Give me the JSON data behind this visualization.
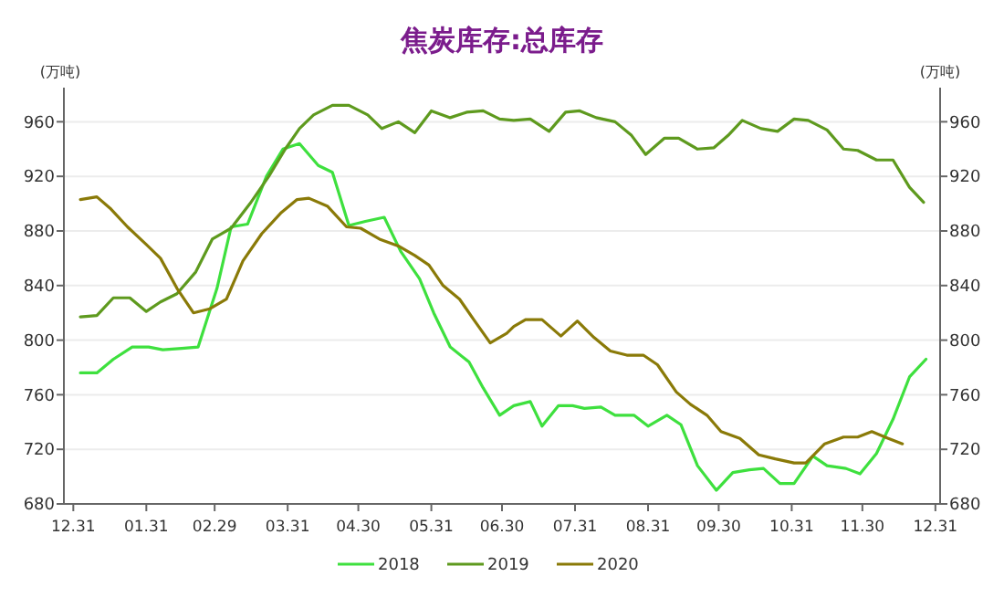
{
  "chart_data": {
    "type": "line",
    "title": "焦炭库存:总库存",
    "ylabel": "(万吨)",
    "y2label": "(万吨)",
    "xlim": [
      "2019-12-27",
      "2021-01-02"
    ],
    "xticks": [
      {
        "value": "2019-12-31",
        "label": "12.31"
      },
      {
        "value": "2020-01-31",
        "label": "01.31"
      },
      {
        "value": "2020-02-29",
        "label": "02.29"
      },
      {
        "value": "2020-03-31",
        "label": "03.31"
      },
      {
        "value": "2020-04-30",
        "label": "04.30"
      },
      {
        "value": "2020-05-31",
        "label": "05.31"
      },
      {
        "value": "2020-06-30",
        "label": "06.30"
      },
      {
        "value": "2020-07-31",
        "label": "07.31"
      },
      {
        "value": "2020-08-31",
        "label": "08.31"
      },
      {
        "value": "2020-09-30",
        "label": "09.30"
      },
      {
        "value": "2020-10-31",
        "label": "10.31"
      },
      {
        "value": "2020-11-30",
        "label": "11.30"
      },
      {
        "value": "2020-12-31",
        "label": "12.31"
      }
    ],
    "ylim": [
      680,
      985
    ],
    "yticks": [
      680,
      720,
      760,
      800,
      840,
      880,
      920,
      960
    ],
    "y2lim": [
      680,
      985
    ],
    "y2ticks": [
      680,
      720,
      760,
      800,
      840,
      880,
      920,
      960
    ],
    "grid": "y",
    "legend": "bottom",
    "line_style": "solid",
    "marker": "none",
    "series": [
      {
        "name": "2018",
        "color": "#3ee03e",
        "x": [
          "2020-01-03",
          "2020-01-10",
          "2020-01-17",
          "2020-01-25",
          "2020-02-01",
          "2020-02-07",
          "2020-02-15",
          "2020-02-22",
          "2020-03-01",
          "2020-03-07",
          "2020-03-14",
          "2020-03-22",
          "2020-03-29",
          "2020-04-05",
          "2020-04-13",
          "2020-04-19",
          "2020-04-26",
          "2020-05-03",
          "2020-05-11",
          "2020-05-18",
          "2020-05-26",
          "2020-06-01",
          "2020-06-08",
          "2020-06-16",
          "2020-06-22",
          "2020-06-29",
          "2020-07-05",
          "2020-07-12",
          "2020-07-17",
          "2020-07-24",
          "2020-07-30",
          "2020-08-04",
          "2020-08-11",
          "2020-08-17",
          "2020-08-25",
          "2020-08-31",
          "2020-09-08",
          "2020-09-14",
          "2020-09-21",
          "2020-09-29",
          "2020-10-06",
          "2020-10-13",
          "2020-10-19",
          "2020-10-26",
          "2020-11-01",
          "2020-11-09",
          "2020-11-15",
          "2020-11-23",
          "2020-11-29",
          "2020-12-06",
          "2020-12-13",
          "2020-12-20",
          "2020-12-27"
        ],
        "values": [
          776,
          776,
          786,
          795,
          795,
          793,
          794,
          795,
          838,
          883,
          885,
          920,
          940,
          944,
          928,
          923,
          884,
          887,
          890,
          865,
          845,
          820,
          795,
          784,
          765,
          745,
          752,
          755,
          737,
          752,
          752,
          750,
          751,
          745,
          745,
          737,
          745,
          738,
          708,
          690,
          703,
          705,
          706,
          695,
          695,
          715,
          708,
          706,
          702,
          717,
          742,
          773,
          786
        ]
      },
      {
        "name": "2019",
        "color": "#5e9a1e",
        "x": [
          "2020-01-03",
          "2020-01-10",
          "2020-01-17",
          "2020-01-24",
          "2020-01-31",
          "2020-02-06",
          "2020-02-13",
          "2020-02-21",
          "2020-02-28",
          "2020-03-07",
          "2020-03-15",
          "2020-03-23",
          "2020-03-30",
          "2020-04-05",
          "2020-04-11",
          "2020-04-19",
          "2020-04-26",
          "2020-05-04",
          "2020-05-10",
          "2020-05-17",
          "2020-05-24",
          "2020-05-31",
          "2020-06-08",
          "2020-06-15",
          "2020-06-22",
          "2020-06-29",
          "2020-07-05",
          "2020-07-12",
          "2020-07-20",
          "2020-07-27",
          "2020-08-02",
          "2020-08-09",
          "2020-08-17",
          "2020-08-24",
          "2020-08-30",
          "2020-09-07",
          "2020-09-13",
          "2020-09-21",
          "2020-09-28",
          "2020-10-04",
          "2020-10-10",
          "2020-10-18",
          "2020-10-25",
          "2020-11-01",
          "2020-11-07",
          "2020-11-15",
          "2020-11-22",
          "2020-11-28",
          "2020-12-06",
          "2020-12-13",
          "2020-12-20",
          "2020-12-26"
        ],
        "values": [
          817,
          818,
          831,
          831,
          821,
          828,
          834,
          850,
          874,
          882,
          900,
          920,
          940,
          955,
          965,
          972,
          972,
          965,
          955,
          960,
          952,
          968,
          963,
          967,
          968,
          962,
          961,
          962,
          953,
          967,
          968,
          963,
          960,
          950,
          936,
          948,
          948,
          940,
          941,
          950,
          961,
          955,
          953,
          962,
          961,
          954,
          940,
          939,
          932,
          932,
          912,
          901
        ]
      },
      {
        "name": "2020",
        "color": "#8a7a08",
        "x": [
          "2020-01-03",
          "2020-01-10",
          "2020-01-16",
          "2020-01-23",
          "2020-01-31",
          "2020-02-06",
          "2020-02-13",
          "2020-02-20",
          "2020-02-27",
          "2020-03-05",
          "2020-03-12",
          "2020-03-20",
          "2020-03-28",
          "2020-04-04",
          "2020-04-09",
          "2020-04-17",
          "2020-04-25",
          "2020-05-01",
          "2020-05-09",
          "2020-05-17",
          "2020-05-24",
          "2020-05-30",
          "2020-06-05",
          "2020-06-12",
          "2020-06-18",
          "2020-06-25",
          "2020-07-02",
          "2020-07-05",
          "2020-07-10",
          "2020-07-17",
          "2020-07-25",
          "2020-08-01",
          "2020-08-08",
          "2020-08-15",
          "2020-08-22",
          "2020-08-29",
          "2020-09-04",
          "2020-09-12",
          "2020-09-18",
          "2020-09-25",
          "2020-10-01",
          "2020-10-09",
          "2020-10-17",
          "2020-10-24",
          "2020-11-01",
          "2020-11-06",
          "2020-11-14",
          "2020-11-22",
          "2020-11-28",
          "2020-12-04",
          "2020-12-11",
          "2020-12-17"
        ],
        "values": [
          903,
          905,
          896,
          883,
          870,
          860,
          838,
          820,
          823,
          830,
          858,
          878,
          893,
          903,
          904,
          898,
          883,
          882,
          874,
          869,
          862,
          855,
          840,
          830,
          815,
          798,
          805,
          810,
          815,
          815,
          803,
          814,
          802,
          792,
          789,
          789,
          782,
          762,
          753,
          745,
          733,
          728,
          716,
          713,
          710,
          710,
          724,
          729,
          729,
          733,
          728,
          724
        ]
      }
    ]
  }
}
